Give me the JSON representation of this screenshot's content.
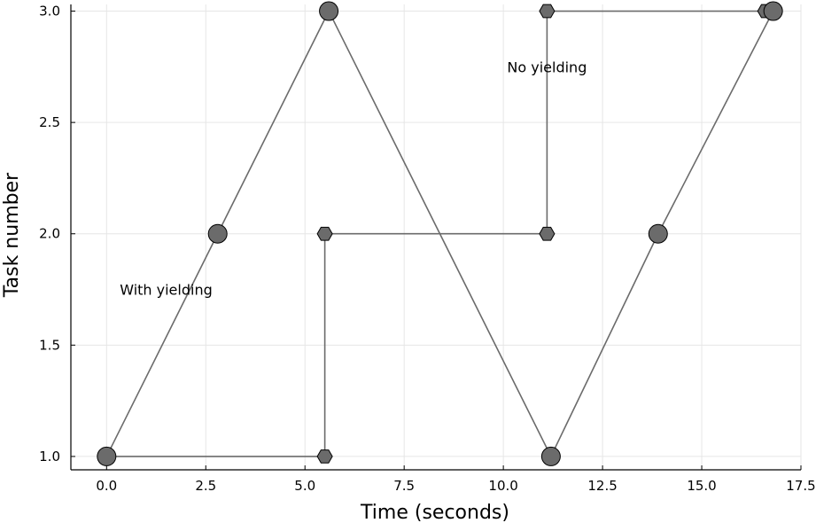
{
  "chart_data": {
    "type": "line",
    "title": "",
    "xlabel": "Time (seconds)",
    "ylabel": "Task number",
    "xlim": [
      -0.9,
      17.5
    ],
    "ylim": [
      0.94,
      3.03
    ],
    "xticks": [
      0.0,
      2.5,
      5.0,
      7.5,
      10.0,
      12.5,
      15.0,
      17.5
    ],
    "xtick_labels": [
      "0.0",
      "2.5",
      "5.0",
      "7.5",
      "10.0",
      "12.5",
      "15.0",
      "17.5"
    ],
    "yticks": [
      1.0,
      1.5,
      2.0,
      2.5,
      3.0
    ],
    "ytick_labels": [
      "1.0",
      "1.5",
      "2.0",
      "2.5",
      "3.0"
    ],
    "grid": true,
    "legend": false,
    "series_color": "#6b6b6b",
    "series": [
      {
        "marker": "circle",
        "points": [
          {
            "x": 0.0,
            "y": 1
          },
          {
            "x": 2.8,
            "y": 2
          },
          {
            "x": 5.6,
            "y": 3
          },
          {
            "x": 11.2,
            "y": 1
          },
          {
            "x": 13.9,
            "y": 2
          },
          {
            "x": 16.8,
            "y": 3
          }
        ]
      },
      {
        "marker": "hexagon",
        "points": [
          {
            "x": 0.0,
            "y": 1
          },
          {
            "x": 5.5,
            "y": 1
          },
          {
            "x": 5.5,
            "y": 2
          },
          {
            "x": 11.1,
            "y": 2
          },
          {
            "x": 11.1,
            "y": 3
          },
          {
            "x": 16.6,
            "y": 3
          }
        ]
      }
    ],
    "annotations": [
      {
        "text": "No yielding",
        "x": 11.1,
        "y": 2.75
      },
      {
        "text": "With yielding",
        "x": 1.5,
        "y": 1.75
      }
    ]
  }
}
